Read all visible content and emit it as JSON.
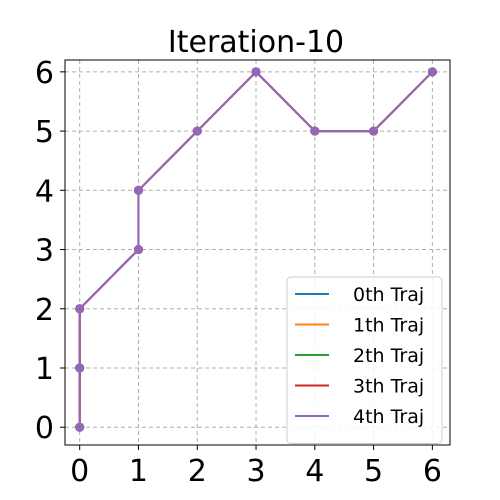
{
  "chart_data": {
    "type": "line",
    "title": "Iteration-10",
    "xlabel": "",
    "ylabel": "",
    "xlim": [
      -0.25,
      6.3
    ],
    "ylim": [
      -0.3,
      6.2
    ],
    "xticks": [
      0,
      1,
      2,
      3,
      4,
      5,
      6
    ],
    "yticks": [
      0,
      1,
      2,
      3,
      4,
      5,
      6
    ],
    "grid": true,
    "legend_position": "lower-right",
    "series": [
      {
        "name": "0th Traj",
        "color": "#1f77b4",
        "x": [
          0,
          0,
          0,
          1,
          1,
          2,
          3,
          4,
          5,
          6
        ],
        "y": [
          0,
          1,
          2,
          3,
          4,
          5,
          6,
          5,
          5,
          6
        ]
      },
      {
        "name": "1th Traj",
        "color": "#ff7f0e",
        "x": [
          0,
          0,
          0,
          1,
          1,
          2,
          3,
          4,
          5,
          6
        ],
        "y": [
          0,
          1,
          2,
          3,
          4,
          5,
          6,
          5,
          5,
          6
        ]
      },
      {
        "name": "2th Traj",
        "color": "#2ca02c",
        "x": [
          0,
          0,
          0,
          1,
          1,
          2,
          3,
          4,
          5,
          6
        ],
        "y": [
          0,
          1,
          2,
          3,
          4,
          5,
          6,
          5,
          5,
          6
        ]
      },
      {
        "name": "3th Traj",
        "color": "#d62728",
        "x": [
          0,
          0,
          0,
          1,
          1,
          2,
          3,
          4,
          5,
          6
        ],
        "y": [
          0,
          1,
          2,
          3,
          4,
          5,
          6,
          5,
          5,
          6
        ]
      },
      {
        "name": "4th Traj",
        "color": "#9467bd",
        "x": [
          0,
          0,
          0,
          1,
          1,
          2,
          3,
          4,
          5,
          6
        ],
        "y": [
          0,
          1,
          2,
          3,
          4,
          5,
          6,
          5,
          5,
          6
        ]
      }
    ]
  }
}
